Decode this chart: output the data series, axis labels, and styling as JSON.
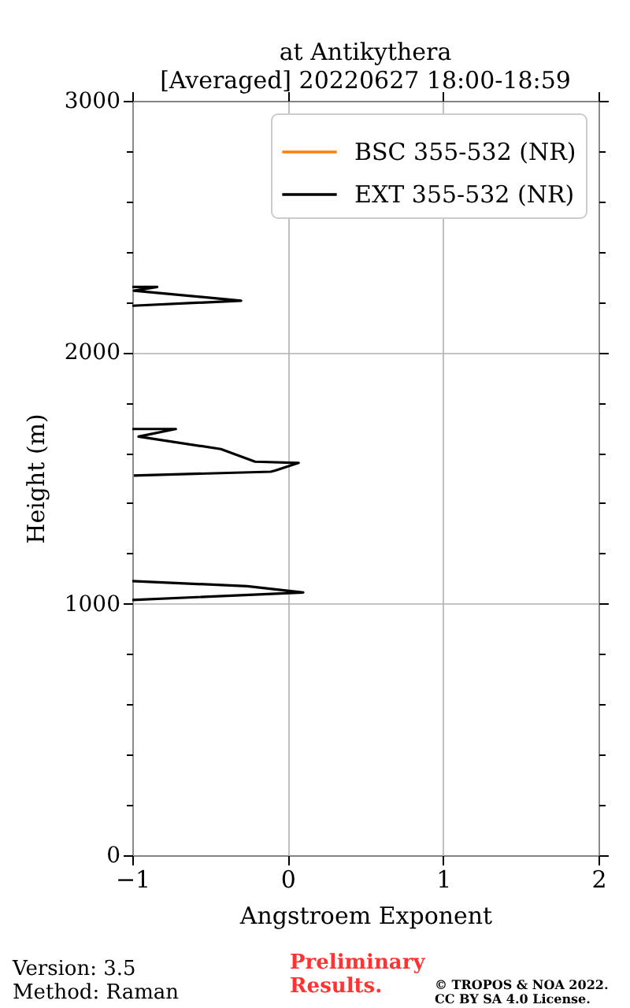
{
  "chart_data": {
    "type": "line",
    "title": "at Antikythera",
    "subtitle": "[Averaged] 20220627 18:00-18:59",
    "xlabel": "Angstroem Exponent",
    "ylabel": "Height (m)",
    "series": [
      {
        "name": "BSC 355-532 (NR)",
        "color": "#ff7f0e"
      },
      {
        "name": "EXT 355-532 (NR)",
        "color": "#000000",
        "x": [
          -1.0,
          0.1,
          -0.26,
          -1.0,
          null,
          -0.99,
          -0.11,
          -0.08,
          0.07,
          -0.21,
          -0.43,
          -0.96,
          -0.72,
          -1.0,
          null,
          -1.0,
          -0.3,
          -0.99,
          -0.84,
          -1.0
        ],
        "values": [
          1015,
          1045,
          1070,
          1090,
          null,
          1510,
          1525,
          1530,
          1560,
          1565,
          1615,
          1665,
          1695,
          1695,
          null,
          2185,
          2205,
          2245,
          2260,
          2260
        ]
      }
    ],
    "xlim": [
      -1,
      2
    ],
    "xticks": [
      -1,
      0,
      1,
      2
    ],
    "ylim": [
      0,
      3000
    ],
    "yticks": [
      0,
      {
        "value": 200,
        "label": null
      },
      {
        "value": 400,
        "label": null
      },
      {
        "value": 600,
        "label": null
      },
      {
        "value": 800,
        "label": null
      },
      1000,
      {
        "value": 1200,
        "label": null
      },
      {
        "value": 1400,
        "label": null
      },
      {
        "value": 1600,
        "label": null
      },
      {
        "value": 1800,
        "label": null
      },
      2000,
      {
        "value": 2200,
        "label": null
      },
      {
        "value": 2400,
        "label": null
      },
      {
        "value": 2600,
        "label": null
      },
      {
        "value": 2800,
        "label": null
      },
      3000
    ],
    "grid": true,
    "legend": "top right",
    "line_style": "solid",
    "marker": "none",
    "annotations": [
      "Version: 3.5",
      "Method: Raman",
      "Preliminary Results.",
      "© TROPOS & NOA 2022. CC BY SA 4.0 License."
    ]
  }
}
